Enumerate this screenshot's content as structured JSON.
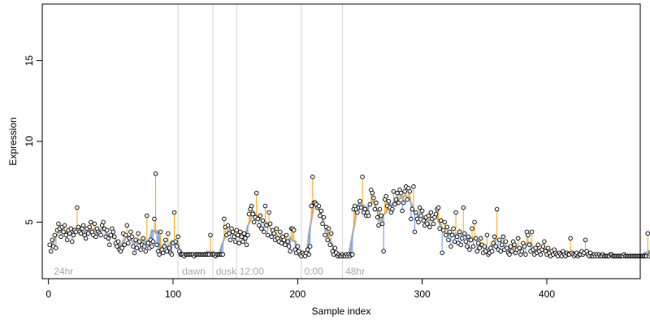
{
  "chart_data": {
    "type": "scatter",
    "xlabel": "Sample index",
    "ylabel": "Expression",
    "xlim": [
      -5,
      475
    ],
    "ylim": [
      1.5,
      18.5
    ],
    "xticks": [
      "0",
      "100",
      "200",
      "300",
      "400"
    ],
    "yticks": [
      "5",
      "10",
      "15"
    ],
    "grid": false,
    "colors": {
      "points_stroke": "#000000",
      "points_fill": "#ffffff",
      "segment_above": "#ffa500",
      "segment_below": "#6495ed",
      "trend_line": "#b5b5b5",
      "vline": "#d3d3d3",
      "annotation": "#a9a9a9"
    },
    "annotations": [
      {
        "label": "24hr",
        "x": 3
      },
      {
        "label": "dawn",
        "x": 106
      },
      {
        "label": "dusk",
        "x": 133
      },
      {
        "label": "12:00",
        "x": 152
      },
      {
        "label": "0:00",
        "x": 204
      },
      {
        "label": "48hr",
        "x": 237
      }
    ],
    "vlines": [
      104,
      132,
      151,
      203,
      236
    ],
    "series": [
      {
        "x_range": [
          1,
          463
        ],
        "values": [
          3.6,
          3.2,
          3.9,
          3.5,
          4.2,
          3.4,
          4.5,
          4.9,
          4.6,
          4.1,
          4.7,
          4.4,
          4.8,
          4.2,
          3.9,
          4.5,
          4.3,
          4.6,
          3.8,
          4.2,
          4.5,
          4.4,
          5.9,
          4.7,
          4.4,
          4.3,
          4.6,
          4.8,
          4.2,
          4.0,
          4.6,
          4.3,
          4.7,
          5.0,
          4.4,
          4.2,
          4.9,
          4.1,
          4.6,
          4.4,
          4.3,
          4.2,
          4.8,
          5.0,
          4.6,
          4.1,
          4.5,
          4.0,
          3.6,
          4.2,
          4.6,
          4.4,
          4.1,
          3.7,
          3.5,
          3.8,
          3.3,
          3.2,
          3.4,
          4.3,
          3.6,
          4.2,
          4.8,
          3.7,
          4.0,
          4.4,
          4.1,
          3.5,
          3.1,
          3.9,
          3.4,
          4.3,
          3.8,
          3.3,
          3.6,
          4.0,
          3.5,
          3.2,
          5.4,
          3.7,
          3.4,
          3.9,
          3.5,
          3.8,
          5.2,
          8.0,
          3.6,
          3.2,
          3.0,
          4.4,
          3.3,
          3.1,
          3.5,
          3.9,
          3.2,
          4.3,
          3.4,
          3.1,
          3.0,
          3.7,
          5.6,
          3.8,
          3.5,
          4.1,
          3.2,
          3.0,
          3.0,
          3.0,
          2.9,
          3.0,
          3.0,
          3.0,
          3.0,
          3.0,
          3.0,
          3.0,
          2.9,
          3.0,
          3.0,
          3.0,
          3.0,
          3.0,
          3.0,
          3.0,
          3.0,
          3.0,
          3.0,
          3.0,
          3.0,
          4.2,
          3.0,
          3.0,
          3.0,
          2.9,
          3.0,
          3.0,
          3.0,
          3.0,
          3.0,
          3.0,
          5.2,
          4.7,
          4.2,
          4.8,
          4.3,
          3.9,
          4.6,
          4.4,
          4.1,
          3.8,
          4.5,
          4.2,
          3.7,
          4.4,
          4.1,
          3.8,
          4.3,
          4.0,
          3.6,
          4.2,
          5.5,
          5.8,
          6.0,
          5.5,
          5.0,
          5.3,
          6.8,
          5.2,
          4.8,
          5.4,
          4.6,
          5.1,
          4.4,
          6.0,
          4.8,
          4.2,
          5.6,
          4.9,
          4.1,
          4.5,
          4.3,
          3.9,
          4.6,
          4.0,
          3.8,
          4.4,
          3.7,
          4.1,
          3.9,
          3.6,
          4.2,
          3.8,
          3.5,
          3.2,
          4.6,
          4.6,
          4.5,
          3.3,
          3.1,
          3.5,
          3.2,
          3.0,
          2.9,
          3.1,
          3.0,
          2.9,
          3.1,
          3.3,
          3.0,
          3.5,
          6.0,
          7.8,
          6.2,
          6.2,
          6.1,
          5.9,
          6.0,
          5.4,
          5.7,
          4.9,
          5.3,
          4.2,
          4.7,
          3.9,
          4.6,
          3.6,
          4.3,
          3.2,
          3.0,
          3.4,
          3.1,
          2.9,
          3.0,
          2.9,
          2.9,
          3.0,
          2.9,
          2.9,
          3.0,
          2.9,
          3.0,
          2.9,
          3.0,
          3.0,
          5.8,
          6.0,
          5.8,
          5.6,
          5.9,
          6.3,
          5.9,
          7.8,
          5.6,
          5.8,
          5.4,
          5.6,
          5.4,
          6.1,
          7.0,
          6.8,
          6.5,
          5.8,
          6.2,
          5.3,
          4.8,
          5.8,
          5.4,
          4.9,
          3.2,
          6.4,
          6.6,
          6.0,
          6.3,
          5.9,
          5.6,
          5.8,
          6.9,
          6.1,
          6.4,
          6.8,
          6.2,
          7.0,
          6.8,
          5.7,
          6.2,
          6.9,
          7.2,
          6.4,
          7.1,
          6.9,
          5.2,
          5.8,
          7.2,
          4.4,
          5.6,
          5.2,
          5.0,
          5.9,
          5.4,
          5.7,
          5.1,
          4.8,
          5.3,
          4.9,
          5.4,
          4.7,
          5.6,
          5.2,
          4.9,
          5.3,
          5.5,
          5.8,
          5.9,
          4.6,
          5.1,
          3.1,
          4.5,
          5.0,
          4.2,
          4.7,
          3.9,
          4.4,
          3.5,
          4.2,
          4.6,
          3.8,
          5.6,
          4.1,
          3.7,
          4.4,
          3.6,
          4.0,
          5.9,
          4.3,
          3.8,
          3.5,
          4.1,
          3.3,
          3.9,
          4.6,
          3.5,
          5.0,
          4.0,
          3.2,
          3.7,
          3.4,
          4.0,
          3.6,
          3.1,
          3.5,
          3.2,
          4.2,
          3.0,
          3.1,
          3.4,
          3.2,
          3.7,
          4.1,
          3.5,
          5.8,
          3.3,
          3.9,
          3.2,
          3.6,
          4.1,
          3.3,
          3.8,
          3.4,
          3.1,
          3.0,
          3.5,
          3.2,
          3.8,
          3.6,
          3.1,
          3.3,
          4.0,
          3.4,
          3.0,
          3.2,
          3.7,
          3.5,
          3.0,
          4.4,
          4.2,
          3.6,
          3.2,
          4.4,
          3.3,
          3.0,
          3.4,
          3.1,
          3.6,
          3.2,
          3.0,
          3.3,
          3.5,
          3.8,
          3.2,
          3.0,
          3.4,
          3.1,
          2.9,
          3.2,
          3.0,
          3.3,
          3.1,
          3.0,
          2.9,
          3.1,
          3.0,
          2.9,
          3.2,
          3.0,
          2.9,
          3.1,
          3.0,
          3.0,
          4.0,
          3.1,
          3.0,
          2.9,
          3.0,
          3.1,
          2.9,
          3.0,
          3.0,
          3.2,
          3.0,
          3.1,
          3.9,
          3.2,
          3.0,
          2.9,
          3.1,
          2.9,
          2.9,
          3.0,
          2.9,
          3.0,
          2.9,
          3.0,
          2.9,
          2.9,
          3.0,
          2.9,
          2.9,
          2.9,
          2.9,
          2.9,
          3.0,
          3.0,
          2.9,
          2.9,
          2.9,
          2.9,
          2.9,
          2.9,
          2.9,
          2.9,
          2.9,
          3.0,
          2.9,
          2.9,
          2.9,
          2.9,
          2.9,
          2.9,
          2.9,
          2.9,
          2.9,
          2.9,
          2.9,
          2.9,
          2.9,
          2.9,
          2.9,
          2.9,
          2.9,
          2.9,
          4.3,
          2.9,
          3.0
        ]
      }
    ]
  }
}
